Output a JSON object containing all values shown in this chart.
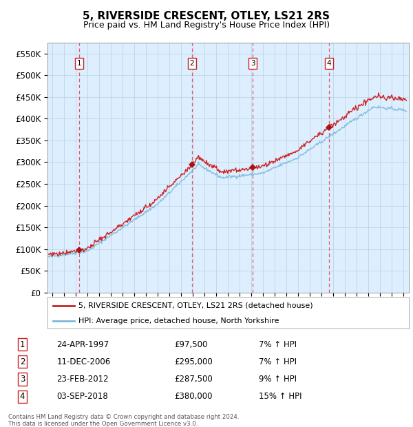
{
  "title": "5, RIVERSIDE CRESCENT, OTLEY, LS21 2RS",
  "subtitle": "Price paid vs. HM Land Registry's House Price Index (HPI)",
  "footer1": "Contains HM Land Registry data © Crown copyright and database right 2024.",
  "footer2": "This data is licensed under the Open Government Licence v3.0.",
  "legend_line1": "5, RIVERSIDE CRESCENT, OTLEY, LS21 2RS (detached house)",
  "legend_line2": "HPI: Average price, detached house, North Yorkshire",
  "sales": [
    {
      "num": 1,
      "date_yr": 1997.31,
      "price": 97500,
      "pct": "7%",
      "dir": "↑"
    },
    {
      "num": 2,
      "date_yr": 2006.95,
      "price": 295000,
      "pct": "7%",
      "dir": "↑"
    },
    {
      "num": 3,
      "date_yr": 2012.14,
      "price": 287500,
      "pct": "9%",
      "dir": "↑"
    },
    {
      "num": 4,
      "date_yr": 2018.67,
      "price": 380000,
      "pct": "15%",
      "dir": "↑"
    }
  ],
  "sale_dates_display": [
    "24-APR-1997",
    "11-DEC-2006",
    "23-FEB-2012",
    "03-SEP-2018"
  ],
  "hpi_color": "#7ab8d9",
  "price_color": "#cc2222",
  "sale_dot_color": "#aa1111",
  "dashed_line_color": "#dd4444",
  "box_color": "#cc2222",
  "bg_color": "#ddeeff",
  "grid_color": "#b8cfe0",
  "ylim": [
    0,
    575000
  ],
  "yticks": [
    0,
    50000,
    100000,
    150000,
    200000,
    250000,
    300000,
    350000,
    400000,
    450000,
    500000,
    550000
  ],
  "xlim_start": 1994.6,
  "xlim_end": 2025.5
}
